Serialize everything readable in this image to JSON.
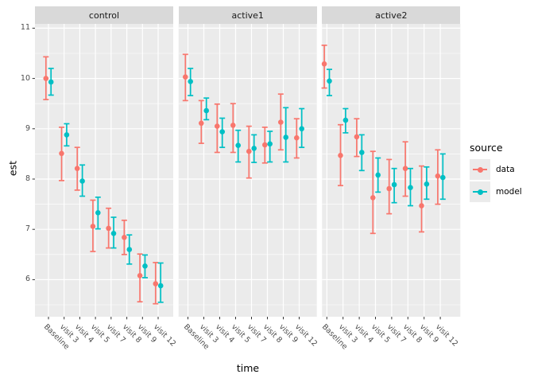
{
  "chart_data": {
    "type": "pointrange",
    "xlabel": "time",
    "ylabel": "est",
    "facets": [
      "control",
      "active1",
      "active2"
    ],
    "categories": [
      "Baseline",
      "visit 3",
      "visit 4",
      "visit 5",
      "visit 7",
      "visit 8",
      "visit 9",
      "visit 12"
    ],
    "y_ticks": [
      11,
      10,
      9,
      8,
      7,
      6
    ],
    "y_tick_labels": [
      "11",
      "10",
      "9",
      "8",
      "7",
      "6"
    ],
    "y_minor": [
      10.5,
      9.5,
      8.5,
      7.5,
      6.5,
      5.5
    ],
    "ylim": [
      5.2,
      11.1
    ],
    "grid": "on",
    "legend": {
      "title": "source",
      "position": "right",
      "entries": [
        {
          "label": "data",
          "color": "#F8766D"
        },
        {
          "label": "model",
          "color": "#00BFC4"
        }
      ]
    },
    "series": [
      {
        "facet": "control",
        "name": "data",
        "est": [
          10.0,
          8.51,
          8.21,
          7.06,
          7.02,
          6.84,
          6.08,
          5.92
        ],
        "lo": [
          9.58,
          7.97,
          7.78,
          6.56,
          6.63,
          6.5,
          5.56,
          5.52
        ],
        "hi": [
          10.43,
          9.03,
          8.63,
          7.58,
          7.42,
          7.18,
          6.51,
          6.34
        ]
      },
      {
        "facet": "control",
        "name": "model",
        "est": [
          9.93,
          8.88,
          7.96,
          7.33,
          6.92,
          6.6,
          6.27,
          5.88
        ],
        "lo": [
          9.67,
          8.66,
          7.66,
          7.01,
          6.63,
          6.31,
          6.04,
          5.55
        ],
        "hi": [
          10.2,
          9.1,
          8.28,
          7.64,
          7.24,
          6.89,
          6.49,
          6.33
        ]
      },
      {
        "facet": "active1",
        "name": "data",
        "est": [
          10.03,
          9.11,
          9.05,
          9.07,
          8.55,
          8.68,
          9.13,
          8.82
        ],
        "lo": [
          9.56,
          8.71,
          8.53,
          8.53,
          8.02,
          8.32,
          8.58,
          8.42
        ],
        "hi": [
          10.48,
          9.56,
          9.49,
          9.5,
          9.05,
          9.03,
          9.69,
          9.2
        ]
      },
      {
        "facet": "active1",
        "name": "model",
        "est": [
          9.94,
          9.36,
          8.94,
          8.67,
          8.61,
          8.7,
          8.83,
          9.0
        ],
        "lo": [
          9.66,
          9.18,
          8.63,
          8.34,
          8.33,
          8.34,
          8.34,
          8.63
        ],
        "hi": [
          10.2,
          9.61,
          9.21,
          8.97,
          8.88,
          8.95,
          9.42,
          9.4
        ]
      },
      {
        "facet": "active2",
        "name": "data",
        "est": [
          10.29,
          8.47,
          8.84,
          7.63,
          7.81,
          8.21,
          7.47,
          8.06
        ],
        "lo": [
          9.81,
          7.87,
          8.45,
          6.92,
          7.31,
          7.66,
          6.95,
          7.5
        ],
        "hi": [
          10.66,
          9.08,
          9.2,
          8.55,
          8.39,
          8.74,
          8.26,
          8.58
        ]
      },
      {
        "facet": "active2",
        "name": "model",
        "est": [
          9.95,
          9.17,
          8.53,
          8.08,
          7.89,
          7.83,
          7.9,
          8.03
        ],
        "lo": [
          9.66,
          8.92,
          8.17,
          7.74,
          7.53,
          7.47,
          7.6,
          7.6
        ],
        "hi": [
          10.18,
          9.4,
          8.88,
          8.42,
          8.21,
          8.21,
          8.24,
          8.5
        ]
      }
    ],
    "theme": {
      "panel_bg": "#EBEBEB",
      "strip_bg": "#D9D9D9",
      "grid": "#FFFFFF",
      "axis_text": "#4D4D4D",
      "tick_mark": "#333333"
    }
  }
}
